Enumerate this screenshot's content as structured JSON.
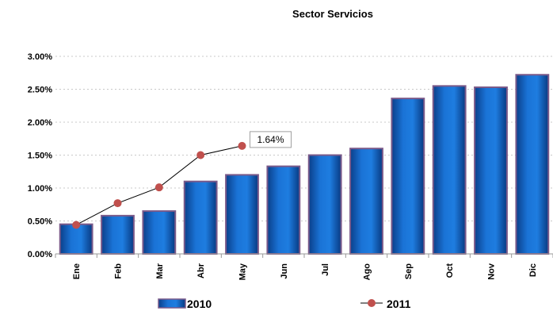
{
  "chart_data": {
    "type": "bar",
    "title": "Sector Servicios",
    "xlabel": "",
    "ylabel": "",
    "categories": [
      "Ene",
      "Feb",
      "Mar",
      "Abr",
      "May",
      "Jun",
      "Jul",
      "Ago",
      "Sep",
      "Oct",
      "Nov",
      "Dic"
    ],
    "ylim": [
      0,
      3.0
    ],
    "yticks": [
      "0.00%",
      "0.50%",
      "1.00%",
      "1.50%",
      "2.00%",
      "2.50%",
      "3.00%"
    ],
    "series": [
      {
        "name": "2010",
        "type": "bar",
        "color": "#0a5fbf",
        "values": [
          0.45,
          0.58,
          0.65,
          1.1,
          1.2,
          1.33,
          1.5,
          1.6,
          2.36,
          2.55,
          2.53,
          2.72
        ]
      },
      {
        "name": "2011",
        "type": "line",
        "color": "#c0504d",
        "values": [
          0.44,
          0.77,
          1.01,
          1.5,
          1.64,
          null,
          null,
          null,
          null,
          null,
          null,
          null
        ]
      }
    ],
    "annotations": [
      {
        "text": "1.64%",
        "series": "2011",
        "category": "May"
      }
    ],
    "legend": "bottom",
    "grid": "dashed horizontal"
  }
}
